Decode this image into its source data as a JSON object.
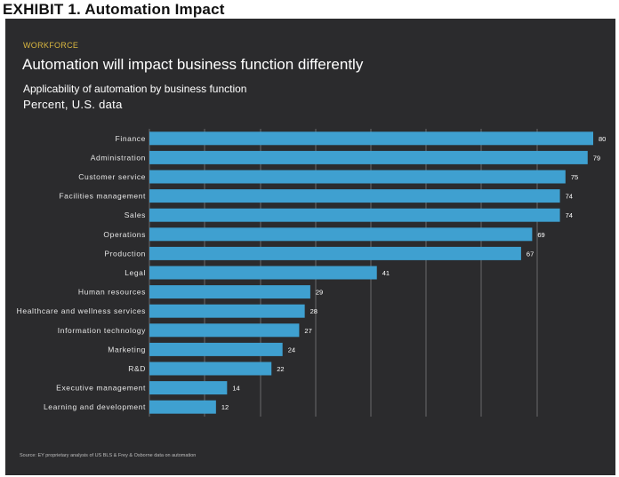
{
  "exhibit_title": "EXHIBIT 1. Automation Impact",
  "kicker": "WORKFORCE",
  "headline": "Automation will impact business function differently",
  "source": "Source: EY proprietary analysis of US BLS & Frey & Osborne data on automation",
  "colors": {
    "panel": "#2b2b2d",
    "bar": "#3fa0d0",
    "grid": "#6a6a6c",
    "kicker": "#d8b640"
  },
  "chart_data": {
    "type": "bar",
    "orientation": "horizontal",
    "title": "Applicability of automation by business function",
    "subtitle": "Percent, U.S. data",
    "xlim": [
      0,
      80
    ],
    "grid": true,
    "categories": [
      "Finance",
      "Administration",
      "Customer service",
      "Facilities management",
      "Sales",
      "Operations",
      "Production",
      "Legal",
      "Human resources",
      "Healthcare and wellness services",
      "Information technology",
      "Marketing",
      "R&D",
      "Executive management",
      "Learning and development"
    ],
    "values": [
      80,
      79,
      75,
      74,
      74,
      69,
      67,
      41,
      29,
      28,
      27,
      24,
      22,
      14,
      12
    ]
  }
}
